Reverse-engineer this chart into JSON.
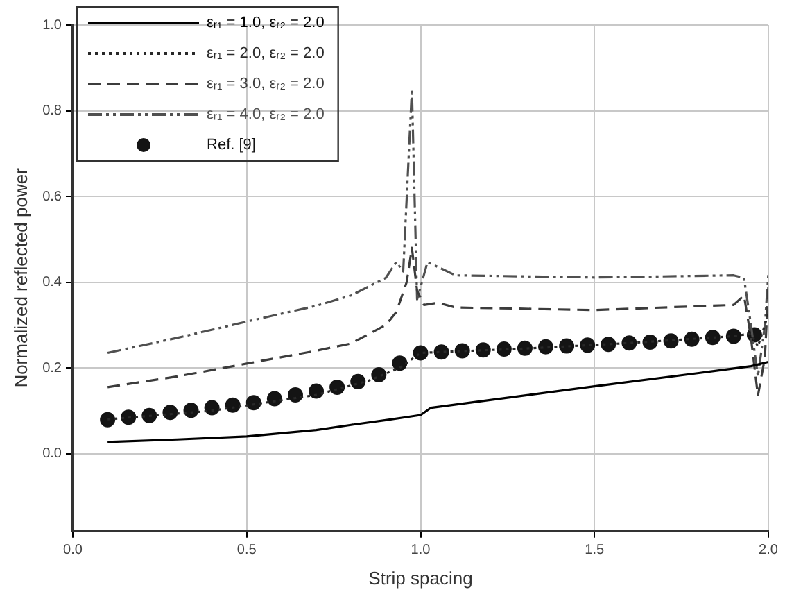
{
  "chart_data": {
    "type": "line",
    "xlabel": "Strip spacing",
    "ylabel": "Normalized reflected power",
    "xlim": [
      0,
      2
    ],
    "ylim": [
      -0.18,
      1.0
    ],
    "xticks": [
      {
        "value": 0,
        "label": "0.0"
      },
      {
        "value": 0.5,
        "label": "0.5"
      },
      {
        "value": 1,
        "label": "1.0"
      },
      {
        "value": 1.5,
        "label": "1.5"
      },
      {
        "value": 2,
        "label": "2.0"
      }
    ],
    "yticks": [
      {
        "value": 0,
        "label": "0.0"
      },
      {
        "value": 0.2,
        "label": "0.2"
      },
      {
        "value": 0.4,
        "label": "0.4"
      },
      {
        "value": 0.6,
        "label": "0.6"
      },
      {
        "value": 0.8,
        "label": "0.8"
      },
      {
        "value": 1,
        "label": "1.0"
      }
    ],
    "grid": true,
    "legend": "top left",
    "series": [
      {
        "name": "εᵣ₁ = 1.0, εᵣ₂ = 2.0",
        "color": "#000000",
        "line_style": "solid",
        "marker": "none",
        "x": [
          0.1,
          0.3,
          0.5,
          0.7,
          0.8,
          0.9,
          0.95,
          1.0,
          1.03,
          1.2,
          1.5,
          1.8,
          1.95,
          2.0
        ],
        "values": [
          0.027,
          0.033,
          0.04,
          0.055,
          0.067,
          0.078,
          0.084,
          0.09,
          0.107,
          0.125,
          0.157,
          0.188,
          0.204,
          0.214
        ]
      },
      {
        "name": "εᵣ₁ = 2.0, εᵣ₂ = 2.0",
        "color": "#282828",
        "line_style": "dotted",
        "marker": "none",
        "x": [
          0.1,
          0.4,
          0.7,
          0.85,
          0.94,
          1.0,
          1.3,
          1.6,
          1.9,
          1.95,
          1.97,
          1.99,
          2.0
        ],
        "values": [
          0.08,
          0.1,
          0.137,
          0.17,
          0.2,
          0.235,
          0.245,
          0.258,
          0.274,
          0.28,
          0.25,
          0.3,
          0.33
        ]
      },
      {
        "name": "εᵣ₁ = 3.0, εᵣ₂ = 2.0",
        "color": "#3c3c3c",
        "line_style": "dashed",
        "marker": "none",
        "x": [
          0.1,
          0.3,
          0.5,
          0.7,
          0.8,
          0.9,
          0.93,
          0.96,
          0.975,
          0.99,
          1.01,
          1.05,
          1.1,
          1.5,
          1.9,
          1.93,
          1.95,
          1.97,
          1.99,
          2.0
        ],
        "values": [
          0.155,
          0.18,
          0.21,
          0.24,
          0.257,
          0.3,
          0.33,
          0.4,
          0.48,
          0.38,
          0.347,
          0.352,
          0.341,
          0.335,
          0.347,
          0.369,
          0.27,
          0.135,
          0.224,
          0.39
        ]
      },
      {
        "name": "εᵣ₁ = 4.0, εᵣ₂ = 2.0",
        "color": "#505050",
        "line_style": "dashdot",
        "marker": "none",
        "x": [
          0.1,
          0.3,
          0.5,
          0.7,
          0.8,
          0.9,
          0.93,
          0.95,
          0.975,
          0.99,
          1.02,
          1.1,
          1.5,
          1.9,
          1.93,
          1.95,
          1.97,
          1.99,
          2.0
        ],
        "values": [
          0.235,
          0.27,
          0.308,
          0.345,
          0.369,
          0.41,
          0.447,
          0.425,
          0.85,
          0.36,
          0.447,
          0.416,
          0.411,
          0.416,
          0.41,
          0.3,
          0.18,
          0.3,
          0.42
        ]
      },
      {
        "name": "Ref. [9]",
        "type": "scatter",
        "color": "#141414",
        "marker": "circle",
        "x": [
          0.1,
          0.16,
          0.22,
          0.28,
          0.34,
          0.4,
          0.46,
          0.52,
          0.58,
          0.64,
          0.7,
          0.76,
          0.82,
          0.88,
          0.94,
          1.0,
          1.06,
          1.12,
          1.18,
          1.24,
          1.3,
          1.36,
          1.42,
          1.48,
          1.54,
          1.6,
          1.66,
          1.72,
          1.78,
          1.84,
          1.9,
          1.96
        ],
        "values": [
          0.079,
          0.085,
          0.089,
          0.096,
          0.101,
          0.107,
          0.113,
          0.119,
          0.128,
          0.137,
          0.146,
          0.155,
          0.168,
          0.184,
          0.211,
          0.235,
          0.237,
          0.24,
          0.242,
          0.244,
          0.246,
          0.249,
          0.251,
          0.253,
          0.255,
          0.258,
          0.26,
          0.263,
          0.267,
          0.271,
          0.274,
          0.277
        ]
      }
    ]
  }
}
